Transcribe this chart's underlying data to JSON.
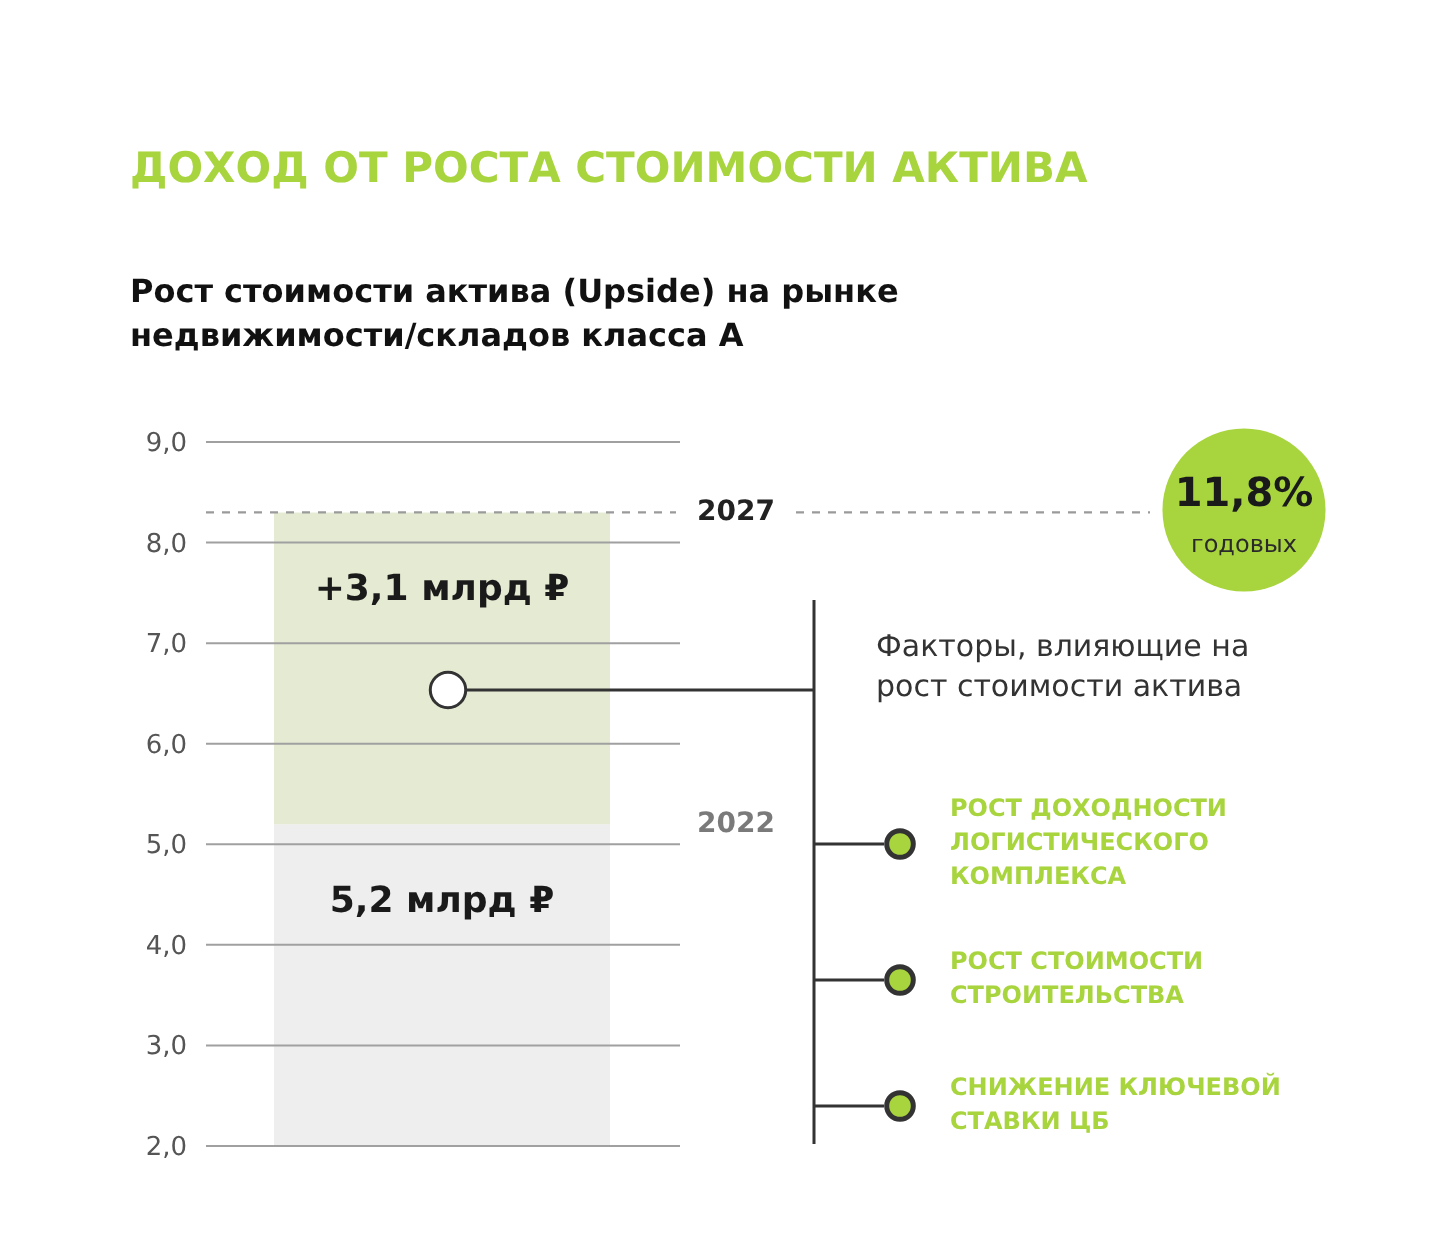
{
  "chart_data": {
    "type": "bar",
    "title": "ДОХОД ОТ РОСТА СТОИМОСТИ АКТИВА",
    "subtitle": "Рост стоимости актива (Upside) на рынке недвижимости/складов класса А",
    "categories": [
      null
    ],
    "stacked": true,
    "series": [
      {
        "color": "#eeeeee",
        "values": [
          5.2
        ],
        "value_labels": [
          "5,2 млрд ₽"
        ]
      },
      {
        "color": "#e5ebd3",
        "values": [
          3.1
        ],
        "value_labels": [
          "+3,1 млрд ₽"
        ]
      }
    ],
    "ylim": [
      2,
      9
    ],
    "yticks": [
      {
        "value": 2,
        "label": "2,0"
      },
      {
        "value": 3,
        "label": "3,0"
      },
      {
        "value": 4,
        "label": "4,0"
      },
      {
        "value": 5,
        "label": "5,0"
      },
      {
        "value": 6,
        "label": "6,0"
      },
      {
        "value": 7,
        "label": "7,0"
      },
      {
        "value": 8,
        "label": "8,0"
      },
      {
        "value": 9,
        "label": "9,0"
      }
    ],
    "grid": "y",
    "tick_labels": "y",
    "ref_lines": [
      {
        "axis": "y",
        "value": 8.3,
        "color": "#9a9a9a",
        "line_style": "dashed"
      }
    ],
    "annotations": [
      "2022",
      "2027",
      "11,8% годовых",
      "Факторы, влияющие на рост стоимости актива",
      "РОСТ ДОХОДНОСТИ ЛОГИСТИЧЕСКОГО КОМПЛЕКСА",
      "РОСТ СТОИМОСТИ СТРОИТЕЛЬСТВА",
      "СНИЖЕНИЕ КЛЮЧЕВОЙ СТАВКИ ЦБ"
    ]
  }
}
